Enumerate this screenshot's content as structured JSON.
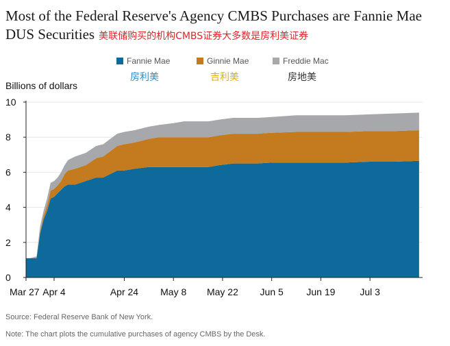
{
  "title": "Most of the Federal Reserve's Agency CMBS Purchases are Fannie Mae DUS Securities",
  "title_cn": "美联储购买的机构CMBS证券大多数是房利美证券",
  "ylabel": "Billions of dollars",
  "source": "Source: Federal Reserve Bank of New York.",
  "note": "Note: The chart plots the cumulative purchases of agency CMBS by the Desk.",
  "legend": [
    {
      "name": "Fannie Mae",
      "cn": "房利美",
      "color": "#0d6a9b",
      "cn_color": "#2a8fd0"
    },
    {
      "name": "Ginnie Mae",
      "cn": "吉利美",
      "color": "#c47a1e",
      "cn_color": "#e0b000"
    },
    {
      "name": "Freddie Mac",
      "cn": "房地美",
      "color": "#a6a8ab",
      "cn_color": "#333333"
    }
  ],
  "chart_data": {
    "type": "area",
    "stacked": true,
    "xlabel": "",
    "ylabel": "Billions of dollars",
    "ylim": [
      0,
      10
    ],
    "yticks": [
      0,
      2,
      4,
      6,
      8,
      10
    ],
    "xlim": [
      0,
      113
    ],
    "xticks": [
      {
        "day": 0,
        "label": "Mar 27"
      },
      {
        "day": 8,
        "label": "Apr 4"
      },
      {
        "day": 28,
        "label": "Apr 24"
      },
      {
        "day": 42,
        "label": "May 8"
      },
      {
        "day": 56,
        "label": "May 22"
      },
      {
        "day": 70,
        "label": "Jun 5"
      },
      {
        "day": 84,
        "label": "Jun 19"
      },
      {
        "day": 98,
        "label": "Jul 3"
      }
    ],
    "x": [
      0,
      1,
      3,
      4,
      5,
      6,
      7,
      8,
      9,
      10,
      11,
      12,
      14,
      17,
      20,
      22,
      24,
      26,
      28,
      31,
      35,
      38,
      42,
      45,
      49,
      52,
      55,
      59,
      63,
      66,
      70,
      77,
      84,
      91,
      98,
      105,
      112
    ],
    "series": [
      {
        "name": "Fannie Mae",
        "values": [
          1.1,
          1.1,
          1.1,
          2.5,
          3.3,
          3.8,
          4.5,
          4.6,
          4.8,
          5.0,
          5.2,
          5.3,
          5.3,
          5.5,
          5.7,
          5.7,
          5.9,
          6.1,
          6.1,
          6.2,
          6.3,
          6.3,
          6.3,
          6.3,
          6.3,
          6.3,
          6.4,
          6.5,
          6.5,
          6.5,
          6.55,
          6.55,
          6.55,
          6.55,
          6.6,
          6.6,
          6.65
        ]
      },
      {
        "name": "Ginnie Mae",
        "values": [
          0.0,
          0.0,
          0.0,
          0.1,
          0.2,
          0.3,
          0.45,
          0.45,
          0.45,
          0.5,
          0.7,
          0.8,
          0.9,
          0.9,
          1.1,
          1.2,
          1.3,
          1.4,
          1.5,
          1.5,
          1.6,
          1.7,
          1.7,
          1.7,
          1.7,
          1.7,
          1.7,
          1.7,
          1.7,
          1.7,
          1.7,
          1.75,
          1.75,
          1.75,
          1.75,
          1.75,
          1.75
        ]
      },
      {
        "name": "Freddie Mac",
        "values": [
          0.0,
          0.0,
          0.1,
          0.3,
          0.3,
          0.4,
          0.45,
          0.45,
          0.45,
          0.5,
          0.5,
          0.6,
          0.7,
          0.7,
          0.7,
          0.7,
          0.7,
          0.7,
          0.7,
          0.7,
          0.7,
          0.7,
          0.8,
          0.9,
          0.9,
          0.9,
          0.9,
          0.9,
          0.9,
          0.9,
          0.9,
          0.95,
          0.95,
          0.95,
          0.95,
          1.0,
          1.0
        ]
      }
    ]
  }
}
